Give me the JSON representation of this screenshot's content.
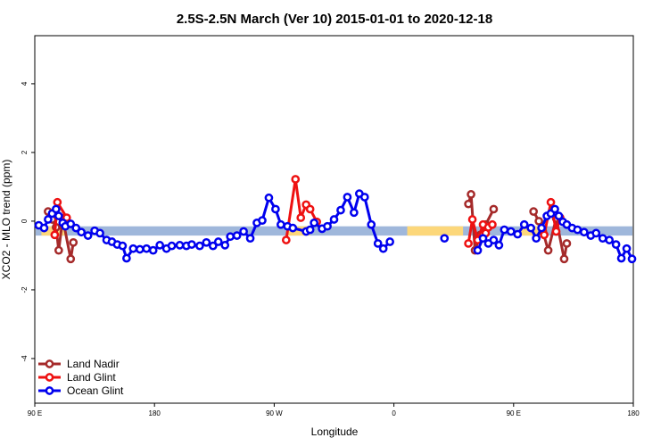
{
  "chart_data": {
    "type": "line",
    "title": "2.5S-2.5N March (Ver 10)   2015-01-01 to 2020-12-18",
    "xlabel": "Longitude",
    "ylabel": "XCO2 - MLO trend (ppm)",
    "xlim": [
      90,
      540
    ],
    "ylim": [
      -5.3,
      5.4
    ],
    "x_ticks": [
      {
        "value": 90,
        "label": "90 E"
      },
      {
        "value": 180,
        "label": "180"
      },
      {
        "value": 270,
        "label": "90 W"
      },
      {
        "value": 360,
        "label": "0"
      },
      {
        "value": 450,
        "label": "90 E"
      },
      {
        "value": 540,
        "label": "180"
      }
    ],
    "y_ticks": [
      {
        "value": -4,
        "label": "-4"
      },
      {
        "value": -2,
        "label": "-2"
      },
      {
        "value": 0,
        "label": "0"
      },
      {
        "value": 2,
        "label": "2"
      },
      {
        "value": 4,
        "label": "4"
      }
    ],
    "grid": false,
    "legend_position": "bottom-left",
    "background_band": {
      "y_range": [
        -0.42,
        -0.15
      ],
      "ocean_color": "#9fb7db",
      "land_color": "#fcd77a",
      "land_segments": [
        [
          95,
          113
        ],
        [
          279,
          297
        ],
        [
          370,
          412
        ],
        [
          455,
          472
        ]
      ]
    },
    "series": [
      {
        "name": "Land Nadir",
        "color": "#a52a2a",
        "x": [
          100,
          103,
          106,
          108,
          111,
          117,
          119,
          416,
          418,
          421,
          425,
          429,
          435,
          465,
          469,
          472,
          476,
          482,
          488,
          490
        ],
        "y": [
          0.28,
          0.05,
          -0.18,
          -0.85,
          0.08,
          -1.1,
          -0.62,
          0.5,
          0.78,
          -0.85,
          -0.4,
          -0.1,
          0.35,
          0.28,
          0.0,
          -0.3,
          -0.85,
          0.08,
          -1.1,
          -0.65
        ]
      },
      {
        "name": "Land Glint",
        "color": "#ee1111",
        "x": [
          105,
          107,
          114,
          279,
          286,
          290,
          294,
          297,
          302,
          416,
          419,
          423,
          427,
          429,
          431,
          434,
          473,
          478,
          482,
          485
        ],
        "y": [
          -0.4,
          0.55,
          0.1,
          -0.55,
          1.22,
          0.1,
          0.48,
          0.35,
          -0.02,
          -0.65,
          0.05,
          -0.55,
          -0.1,
          -0.35,
          -0.18,
          -0.1,
          -0.4,
          0.55,
          -0.3,
          0.1
        ]
      },
      {
        "name": "Ocean Glint",
        "color": "#0000ee",
        "x": [
          93,
          97,
          100,
          103,
          106,
          108,
          111,
          113,
          117,
          121,
          125,
          130,
          135,
          139,
          144,
          148,
          152,
          156,
          159,
          164,
          169,
          174,
          179,
          184,
          189,
          193,
          199,
          204,
          208,
          214,
          219,
          224,
          228,
          233,
          237,
          242,
          247,
          252,
          257,
          261,
          266,
          271,
          275,
          280,
          284,
          294,
          297,
          300,
          306,
          310,
          315,
          320,
          325,
          330,
          334,
          338,
          343,
          348,
          352,
          357,
          398,
          423,
          427,
          431,
          435,
          439,
          443,
          448,
          453,
          458,
          463,
          467,
          471,
          475,
          478,
          481,
          484,
          487,
          490,
          494,
          498,
          503,
          508,
          512,
          517,
          522,
          527,
          531,
          535,
          539
        ],
        "y": [
          -0.12,
          -0.2,
          0.05,
          0.22,
          0.35,
          0.15,
          -0.05,
          -0.15,
          -0.08,
          -0.2,
          -0.32,
          -0.42,
          -0.28,
          -0.35,
          -0.55,
          -0.6,
          -0.68,
          -0.72,
          -1.08,
          -0.8,
          -0.82,
          -0.8,
          -0.85,
          -0.7,
          -0.8,
          -0.72,
          -0.7,
          -0.72,
          -0.68,
          -0.72,
          -0.62,
          -0.72,
          -0.6,
          -0.7,
          -0.45,
          -0.42,
          -0.3,
          -0.5,
          -0.05,
          0.02,
          0.68,
          0.35,
          -0.1,
          -0.15,
          -0.2,
          -0.3,
          -0.25,
          -0.05,
          -0.22,
          -0.15,
          0.05,
          0.32,
          0.7,
          0.25,
          0.8,
          0.7,
          -0.1,
          -0.65,
          -0.8,
          -0.6,
          -0.5,
          -0.85,
          -0.5,
          -0.65,
          -0.55,
          -0.7,
          -0.25,
          -0.3,
          -0.38,
          -0.1,
          -0.2,
          -0.5,
          -0.2,
          0.15,
          0.22,
          0.35,
          0.15,
          -0.02,
          -0.1,
          -0.2,
          -0.25,
          -0.32,
          -0.42,
          -0.35,
          -0.5,
          -0.55,
          -0.68,
          -1.08,
          -0.8,
          -1.1
        ]
      }
    ]
  }
}
